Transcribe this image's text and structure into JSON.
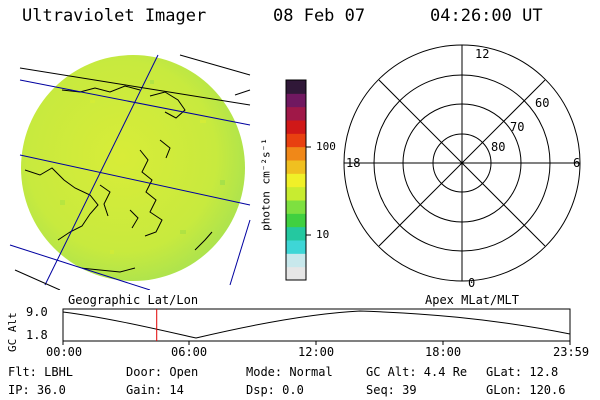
{
  "header": {
    "instrument": "Ultraviolet Imager",
    "date": "08 Feb 07",
    "time": "04:26:00 UT"
  },
  "colorbar": {
    "unit_label": "photon cm⁻²s⁻¹",
    "ticks": [
      "100",
      "10"
    ],
    "colors": [
      "#e6e6e6",
      "#c8e8ec",
      "#3ed6d6",
      "#24c8a0",
      "#40d040",
      "#7ee040",
      "#c8ec30",
      "#f0f028",
      "#f0c020",
      "#f08818",
      "#e84010",
      "#d01818",
      "#a01848",
      "#701860",
      "#301838"
    ]
  },
  "left_map": {
    "label": "Geographic Lat/Lon",
    "fill_color": "#c8ea3c"
  },
  "polar_plot": {
    "label": "Apex MLat/MLT",
    "hour_labels": [
      "12",
      "18",
      "6",
      "0"
    ],
    "lat_labels": [
      "60",
      "70",
      "80"
    ]
  },
  "timeline": {
    "ylabel": "GC Alt",
    "yticks": [
      "9.0",
      "1.8"
    ],
    "xticks": [
      "00:00",
      "06:00",
      "12:00",
      "18:00",
      "23:59"
    ],
    "current_time_marker": "04:26",
    "marker_color": "#e00000"
  },
  "info": {
    "filter": "Flt: LBHL",
    "ip": "IP: 36.0",
    "door": "Door: Open",
    "gain": "Gain: 14",
    "mode": "Mode: Normal",
    "dsp": "Dsp:    0.0",
    "gc_alt": "GC Alt: 4.4 Re",
    "seq": "Seq: 39",
    "glat": "GLat:  12.8",
    "glon": "GLon: 120.6"
  }
}
